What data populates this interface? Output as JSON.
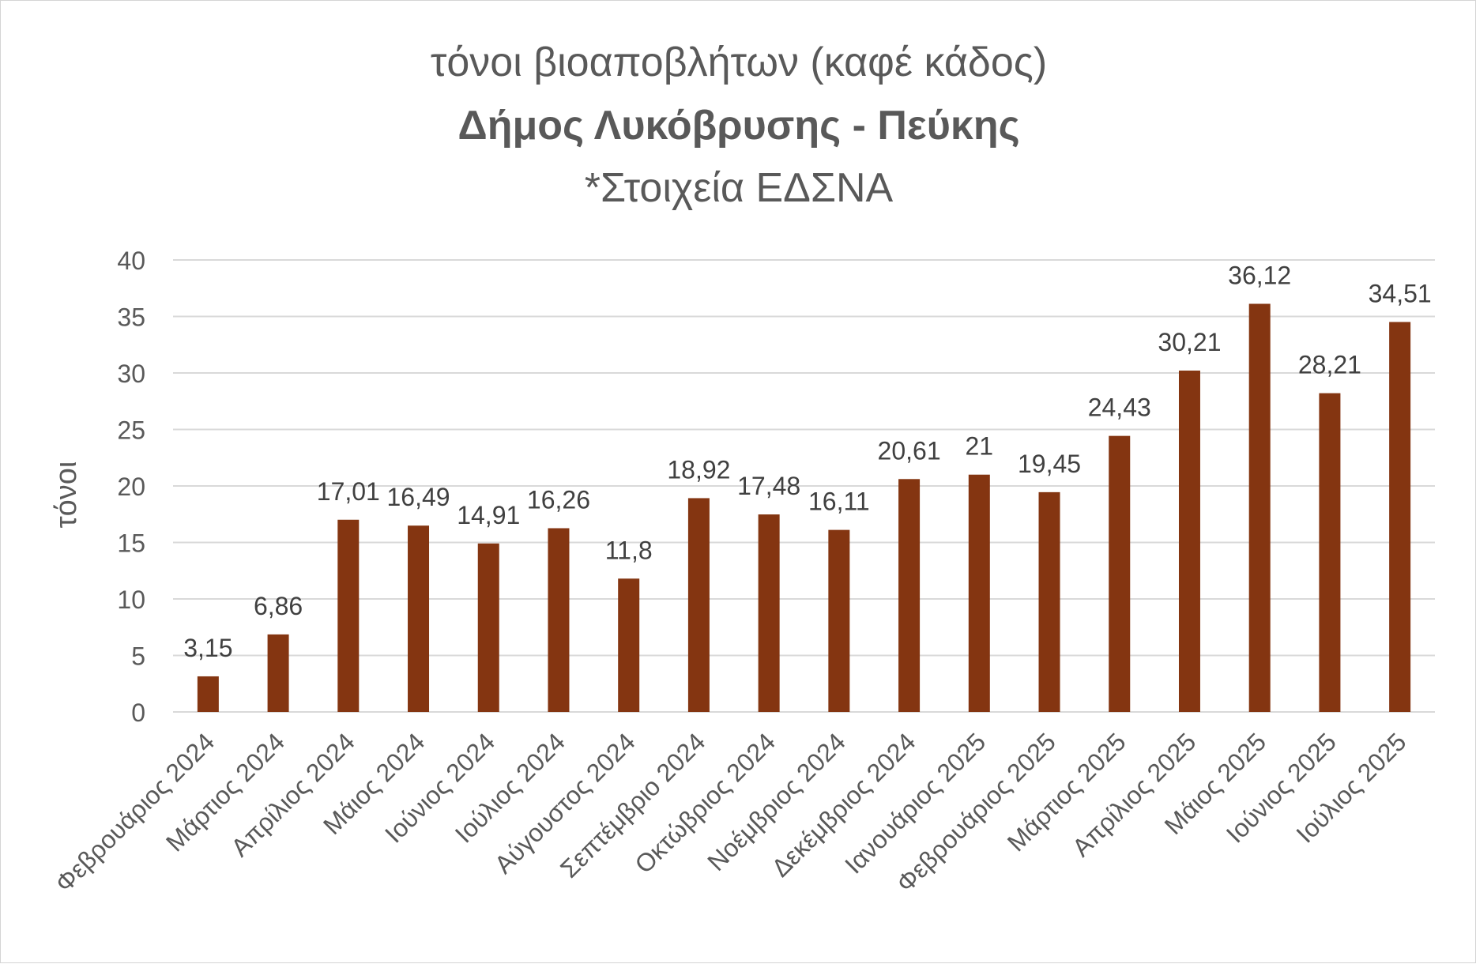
{
  "chart_data": {
    "type": "bar",
    "title": "τόνοι βιοαποβλήτων (καφέ κάδος)",
    "subtitle": "Δήμος Λυκόβρυσης - Πεύκης",
    "note": "*Στοιχεία ΕΔΣΝΑ",
    "ylabel": "τόνοι",
    "xlabel": "",
    "ylim": [
      0,
      40
    ],
    "yticks": [
      0,
      5,
      10,
      15,
      20,
      25,
      30,
      35,
      40
    ],
    "grid": true,
    "bar_color": "#843511",
    "categories": [
      "Φεβρουάριος 2024",
      "Μάρτιος 2024",
      "Απρίλιος 2024",
      "Μάιος 2024",
      "Ιούνιος 2024",
      "Ιούλιος 2024",
      "Αύγουστος 2024",
      "Σεπτέμβριο 2024",
      "Οκτώβριος 2024",
      "Νοέμβριος 2024",
      "Δεκέμβριος 2024",
      "Ιανουάριος 2025",
      "Φεβρουάριος 2025",
      "Μάρτιος 2025",
      "Απρίλιος 2025",
      "Μάιος 2025",
      "Ιούνιος 2025",
      "Ιούλιος 2025"
    ],
    "values": [
      3.15,
      6.86,
      17.01,
      16.49,
      14.91,
      16.26,
      11.8,
      18.92,
      17.48,
      16.11,
      20.61,
      21,
      19.45,
      24.43,
      30.21,
      36.12,
      28.21,
      34.51
    ],
    "data_labels": [
      "3,15",
      "6,86",
      "17,01",
      "16,49",
      "14,91",
      "16,26",
      "11,8",
      "18,92",
      "17,48",
      "16,11",
      "20,61",
      "21",
      "19,45",
      "24,43",
      "30,21",
      "36,12",
      "28,21",
      "34,51"
    ]
  }
}
